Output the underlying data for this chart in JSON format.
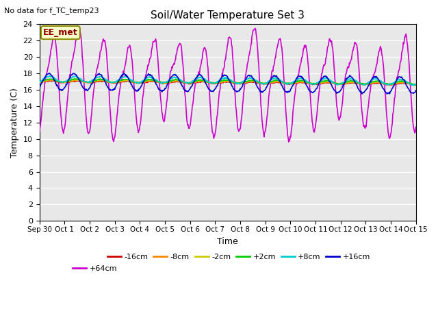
{
  "title": "Soil/Water Temperature Set 3",
  "subtitle": "No data for f_TC_temp23",
  "xlabel": "Time",
  "ylabel": "Temperature (C)",
  "annotation": "EE_met",
  "ylim": [
    0,
    24
  ],
  "yticks": [
    0,
    2,
    4,
    6,
    8,
    10,
    12,
    14,
    16,
    18,
    20,
    22,
    24
  ],
  "xtick_labels": [
    "Sep 30",
    "Oct 1",
    "Oct 2",
    "Oct 3",
    "Oct 4",
    "Oct 5",
    "Oct 6",
    "Oct 7",
    "Oct 8",
    "Oct 9",
    "Oct 10",
    "Oct 11",
    "Oct 12",
    "Oct 13",
    "Oct 14",
    "Oct 15"
  ],
  "colors": {
    "-16cm": "#cc0000",
    "-8cm": "#ff8800",
    "-2cm": "#cccc00",
    "+2cm": "#00cc00",
    "+8cm": "#00cccc",
    "+16cm": "#0000cc",
    "+64cm": "#cc00cc"
  },
  "labels_row1": [
    "-16cm",
    "-8cm",
    "-2cm",
    "+2cm",
    "+8cm",
    "+16cm"
  ],
  "labels_row2": [
    "+64cm"
  ],
  "bg_color": "#e8e8e8",
  "grid_color": "#ffffff",
  "figsize": [
    6.4,
    4.8
  ],
  "dpi": 100
}
